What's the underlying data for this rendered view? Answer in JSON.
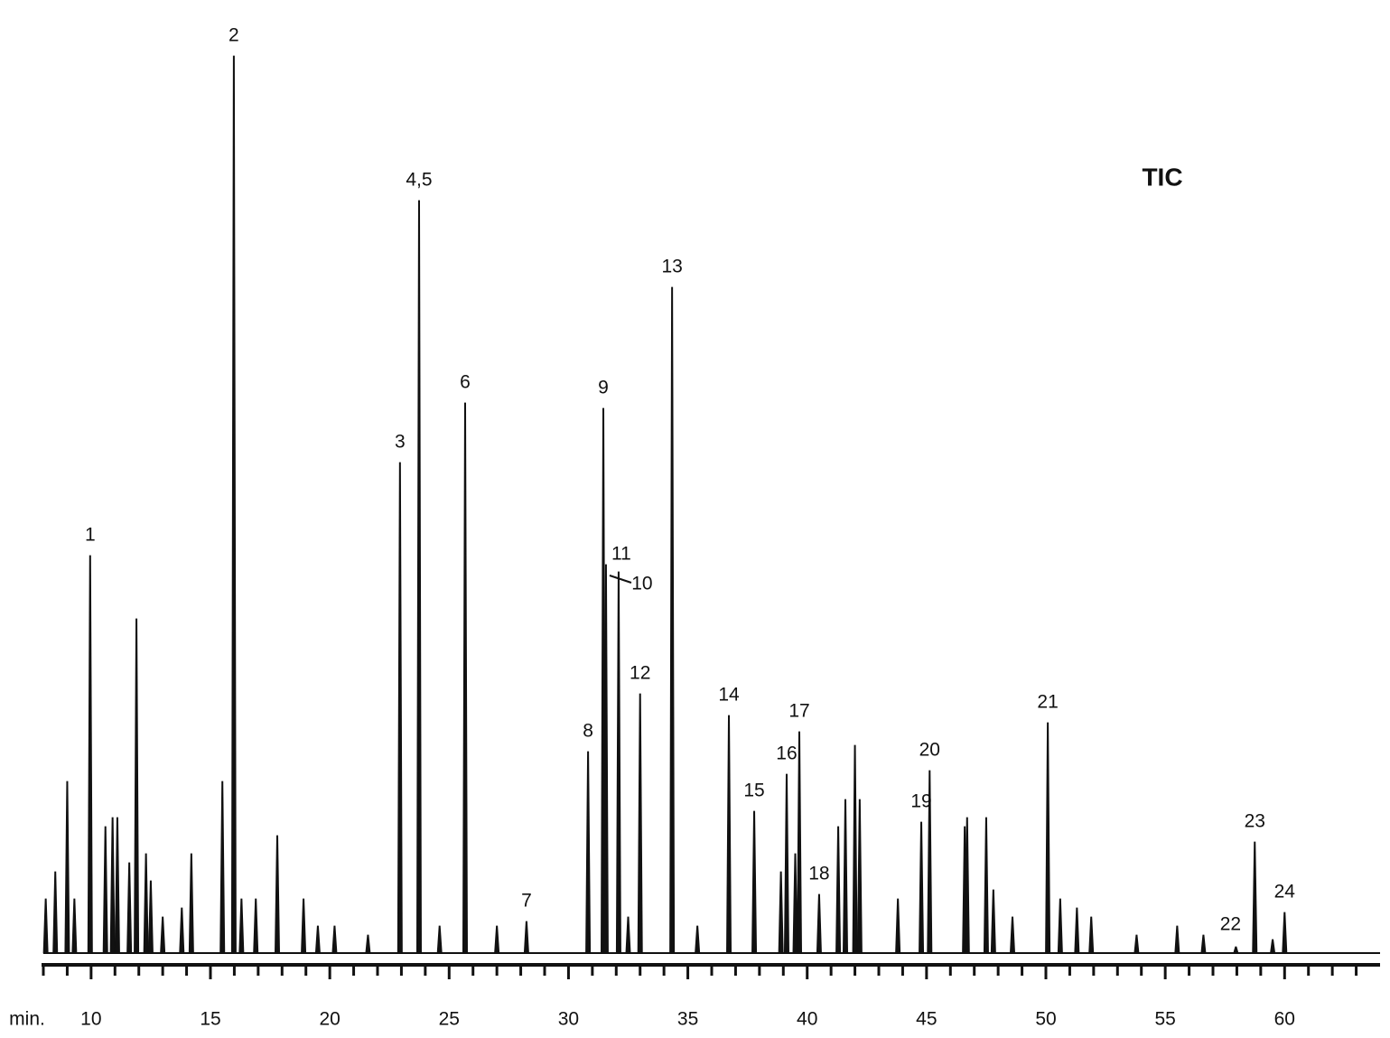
{
  "chart_data": {
    "type": "chromatogram",
    "annotation": "TIC",
    "xlabel": "min.",
    "color": "#111111",
    "xlim": [
      8,
      64
    ],
    "ylim": [
      0,
      100
    ],
    "xticks": [
      10,
      15,
      20,
      25,
      30,
      35,
      40,
      45,
      50,
      55,
      60
    ],
    "minor_xticks": [
      8,
      9,
      11,
      12,
      13,
      14,
      16,
      17,
      18,
      19,
      21,
      22,
      23,
      24,
      26,
      27,
      28,
      29,
      31,
      32,
      33,
      34,
      36,
      37,
      38,
      39,
      41,
      42,
      43,
      44,
      46,
      47,
      48,
      49,
      51,
      52,
      53,
      54,
      56,
      57,
      58,
      59,
      61,
      62,
      63
    ],
    "x": [
      9.96,
      15.98,
      22.94,
      23.74,
      25.67,
      28.24,
      30.82,
      31.46,
      32.1,
      31.57,
      33.0,
      34.34,
      36.72,
      37.78,
      39.14,
      39.67,
      40.5,
      44.78,
      45.13,
      50.08,
      57.96,
      58.75,
      60.0,
      8.1,
      8.5,
      9.0,
      9.3,
      10.6,
      10.9,
      11.1,
      11.6,
      11.9,
      12.3,
      12.5,
      13.0,
      13.8,
      14.2,
      15.5,
      16.3,
      16.9,
      17.8,
      18.9,
      19.5,
      20.2,
      21.6,
      24.6,
      27.0,
      32.5,
      35.4,
      38.9,
      39.5,
      41.3,
      41.6,
      42.0,
      42.2,
      43.8,
      46.6,
      46.7,
      47.5,
      47.8,
      48.6,
      50.6,
      51.3,
      51.9,
      53.8,
      55.5,
      56.6,
      59.5
    ],
    "values": [
      44,
      99.3,
      54.3,
      83.3,
      60.9,
      3.5,
      22.3,
      60.3,
      42.2,
      43,
      28.7,
      73.7,
      26.3,
      15.7,
      19.8,
      24.5,
      6.5,
      14.5,
      20.2,
      25.5,
      0.7,
      12.3,
      4.5,
      6,
      9,
      19,
      6,
      14,
      15,
      15,
      10,
      37,
      11,
      8,
      4,
      5,
      11,
      19,
      6,
      6,
      13,
      6,
      3,
      3,
      2,
      3,
      3,
      4,
      3,
      9,
      11,
      14,
      17,
      23,
      17,
      6,
      14,
      15,
      15,
      7,
      4,
      6,
      5,
      4,
      2,
      3,
      2,
      1.5
    ],
    "labels": [
      "1",
      "2",
      "3",
      "4,5",
      "6",
      "7",
      "8",
      "9",
      "10",
      "11",
      "12",
      "13",
      "14",
      "15",
      "16",
      "17",
      "18",
      "19",
      "20",
      "21",
      "22",
      "23",
      "24",
      null,
      null,
      null,
      null,
      null,
      null,
      null,
      null,
      null,
      null,
      null,
      null,
      null,
      null,
      null,
      null,
      null,
      null,
      null,
      null,
      null,
      null,
      null,
      null,
      null,
      null,
      null,
      null,
      null,
      null,
      null,
      null,
      null,
      null,
      null,
      null,
      null,
      null,
      null,
      null,
      null,
      null,
      null,
      null,
      null
    ]
  }
}
